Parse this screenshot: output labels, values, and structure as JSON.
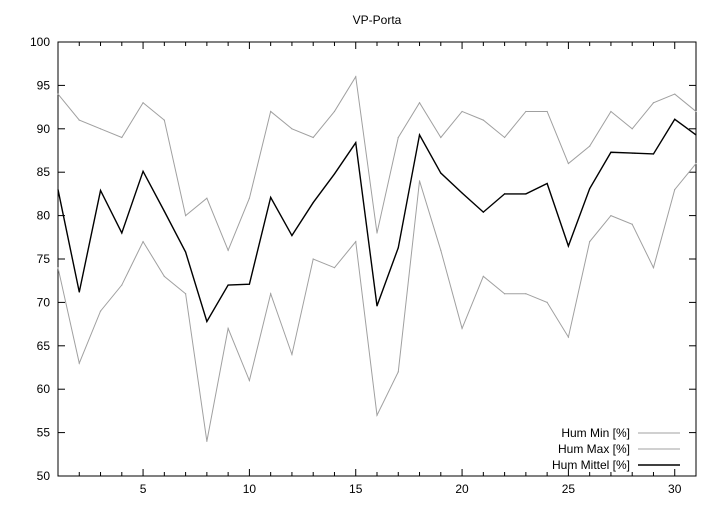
{
  "chart_data": {
    "type": "line",
    "title": "VP-Porta",
    "xlabel": "",
    "ylabel": "",
    "xlim": [
      1,
      31
    ],
    "ylim": [
      50,
      100
    ],
    "x_ticks": [
      5,
      10,
      15,
      20,
      25,
      30
    ],
    "y_ticks": [
      50,
      55,
      60,
      65,
      70,
      75,
      80,
      85,
      90,
      95,
      100
    ],
    "grid": false,
    "legend_position": "bottom-right",
    "x": [
      1,
      2,
      3,
      4,
      5,
      6,
      7,
      8,
      9,
      10,
      11,
      12,
      13,
      14,
      15,
      16,
      17,
      18,
      19,
      20,
      21,
      22,
      23,
      24,
      25,
      26,
      27,
      28,
      29,
      30,
      31
    ],
    "series": [
      {
        "name": "Hum Min [%]",
        "color": "#a0a0a0",
        "values": [
          74,
          63,
          69,
          72,
          77,
          73,
          71,
          54,
          67,
          61,
          71,
          64,
          75,
          74,
          77,
          57,
          62,
          84,
          76,
          67,
          73,
          71,
          71,
          70,
          66,
          77,
          80,
          79,
          74,
          83,
          86
        ]
      },
      {
        "name": "Hum Max [%]",
        "color": "#a0a0a0",
        "values": [
          94,
          91,
          90,
          89,
          93,
          91,
          80,
          82,
          76,
          82,
          92,
          90,
          89,
          92,
          96,
          78,
          89,
          93,
          89,
          92,
          91,
          89,
          92,
          92,
          86,
          88,
          92,
          90,
          93,
          94,
          92
        ]
      },
      {
        "name": "Hum Mittel [%]",
        "color": "#000000",
        "values": [
          83,
          71.2,
          82.9,
          78,
          85.1,
          80.5,
          75.8,
          67.8,
          72,
          72.1,
          82.1,
          77.7,
          81.5,
          84.8,
          88.4,
          69.6,
          76.3,
          89.3,
          84.9,
          82.6,
          80.4,
          82.5,
          82.5,
          83.7,
          76.5,
          83.1,
          87.3,
          87.2,
          87.1,
          91.1,
          89.3
        ]
      }
    ]
  }
}
